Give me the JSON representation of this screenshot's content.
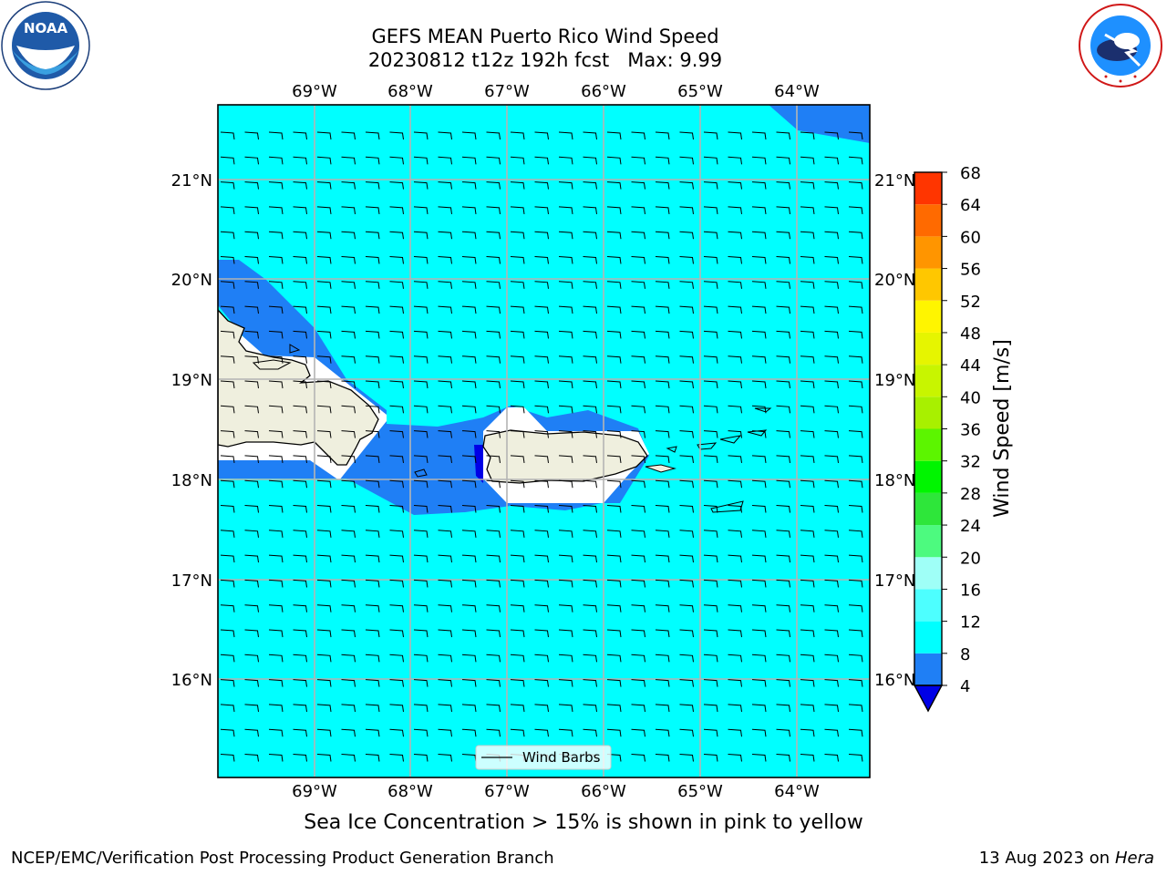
{
  "title": {
    "line1": "GEFS MEAN Puerto Rico Wind Speed",
    "line2": "20230812 t12z 192h fcst   Max: 9.99"
  },
  "map": {
    "lon_labels": [
      "69°W",
      "68°W",
      "67°W",
      "66°W",
      "65°W",
      "64°W"
    ],
    "lat_labels": [
      "21°N",
      "20°N",
      "19°N",
      "18°N",
      "17°N",
      "16°N"
    ],
    "legend_label": "Wind Barbs",
    "colors": {
      "ocean_band_8_12": "#00ffff",
      "band_4_8": "#1f7ff5",
      "below_4": "#0000e6",
      "land": "#efefde",
      "grid": "#b4b4b4"
    }
  },
  "colorbar": {
    "label": "Wind Speed [m/s]",
    "ticks": [
      "4",
      "8",
      "12",
      "16",
      "20",
      "24",
      "28",
      "32",
      "36",
      "40",
      "44",
      "48",
      "52",
      "56",
      "60",
      "64",
      "68"
    ],
    "colors": [
      "#1f7ff5",
      "#00ffff",
      "#4dffff",
      "#9ffff7",
      "#4dfa7f",
      "#2ee63a",
      "#00f500",
      "#5cf500",
      "#a8f000",
      "#c8f500",
      "#e6f500",
      "#fff500",
      "#ffc700",
      "#ff9500",
      "#ff6a00",
      "#ff3500",
      "#ff0000"
    ],
    "under_color": "#0000e6"
  },
  "note": "Sea Ice Concentration > 15% is shown in pink to yellow",
  "footer": {
    "left": "NCEP/EMC/Verification Post Processing Product Generation Branch",
    "right_date": "13 Aug 2023 on",
    "right_host": "Hera"
  },
  "logos": {
    "noaa_text": "NOAA",
    "nws_text": "NATIONAL WEATHER SERVICE"
  }
}
